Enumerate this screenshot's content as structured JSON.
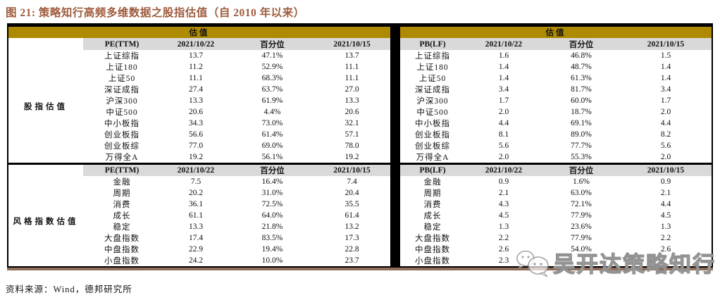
{
  "title": "图 21: 策略知行高频多维数据之股指估值（自 2010 年以来）",
  "valuation_header": "估值",
  "footer": {
    "source": "资料来源：Wind，德邦研究所"
  },
  "watermark": {
    "icon": "wechat-icon",
    "text": "吴开达策略知行"
  },
  "colors": {
    "band_gold": "#AE8A00",
    "subheader_gray": "#D9D9D9",
    "title_red": "#9E5A3C",
    "bottom_rule_brown": "#8F6E5A",
    "border_black": "#000000"
  },
  "tables": [
    {
      "side": "left",
      "has_group_column": true,
      "sections": [
        {
          "group_label": "股指估值",
          "header": [
            "PE(TTM)",
            "2021/10/22",
            "百分位",
            "2021/10/15"
          ],
          "rows": [
            [
              "上证综指",
              "13.7",
              "47.1%",
              "13.7"
            ],
            [
              "上证180",
              "11.2",
              "52.9%",
              "11.1"
            ],
            [
              "上证50",
              "11.1",
              "68.3%",
              "11.1"
            ],
            [
              "深证成指",
              "27.4",
              "63.7%",
              "27.0"
            ],
            [
              "沪深300",
              "13.3",
              "61.9%",
              "13.3"
            ],
            [
              "中证500",
              "20.6",
              "4.4%",
              "20.6"
            ],
            [
              "中小板指",
              "34.3",
              "73.0%",
              "32.1"
            ],
            [
              "创业板指",
              "56.6",
              "61.4%",
              "57.1"
            ],
            [
              "创业板综",
              "77.0",
              "69.0%",
              "78.0"
            ],
            [
              "万得全A",
              "19.2",
              "56.1%",
              "19.2"
            ]
          ]
        },
        {
          "group_label": "风格指数估值",
          "header": [
            "PE(TTM)",
            "2021/10/22",
            "百分位",
            "2021/10/15"
          ],
          "rows": [
            [
              "金融",
              "7.5",
              "16.4%",
              "7.4"
            ],
            [
              "周期",
              "20.2",
              "31.0%",
              "20.4"
            ],
            [
              "消费",
              "36.1",
              "72.5%",
              "35.5"
            ],
            [
              "成长",
              "61.1",
              "64.0%",
              "61.4"
            ],
            [
              "稳定",
              "13.3",
              "21.8%",
              "13.2"
            ],
            [
              "大盘指数",
              "17.4",
              "83.5%",
              "17.3"
            ],
            [
              "中盘指数",
              "22.9",
              "19.4%",
              "22.8"
            ],
            [
              "小盘指数",
              "24.2",
              "10.0%",
              "23.7"
            ]
          ]
        }
      ]
    },
    {
      "side": "right",
      "has_group_column": false,
      "sections": [
        {
          "header": [
            "PB(LF)",
            "2021/10/22",
            "百分位",
            "2021/10/15"
          ],
          "rows": [
            [
              "上证综指",
              "1.6",
              "46.8%",
              "1.5"
            ],
            [
              "上证180",
              "1.4",
              "48.7%",
              "1.4"
            ],
            [
              "上证50",
              "1.4",
              "61.3%",
              "1.4"
            ],
            [
              "深证成指",
              "3.4",
              "81.7%",
              "3.4"
            ],
            [
              "沪深300",
              "1.7",
              "60.0%",
              "1.7"
            ],
            [
              "中证500",
              "2.0",
              "18.7%",
              "2.0"
            ],
            [
              "中小板指",
              "4.4",
              "69.1%",
              "4.4"
            ],
            [
              "创业板指",
              "8.1",
              "89.0%",
              "8.2"
            ],
            [
              "创业板综",
              "5.6",
              "77.7%",
              "5.6"
            ],
            [
              "万得全A",
              "2.0",
              "55.3%",
              "2.0"
            ]
          ]
        },
        {
          "header": [
            "PB(LF)",
            "2021/10/22",
            "百分位",
            "2021/10/15"
          ],
          "rows": [
            [
              "金融",
              "0.9",
              "1.6%",
              "0.9"
            ],
            [
              "周期",
              "2.1",
              "63.0%",
              "2.1"
            ],
            [
              "消费",
              "4.3",
              "72.1%",
              "4.4"
            ],
            [
              "成长",
              "4.5",
              "77.9%",
              "4.5"
            ],
            [
              "稳定",
              "1.3",
              "23.6%",
              "1.3"
            ],
            [
              "大盘指数",
              "2.2",
              "77.9%",
              "2.2"
            ],
            [
              "中盘指数",
              "2.6",
              "54.0%",
              "2.6"
            ],
            [
              "小盘指数",
              "2.3",
              "",
              ""
            ]
          ]
        }
      ]
    }
  ]
}
